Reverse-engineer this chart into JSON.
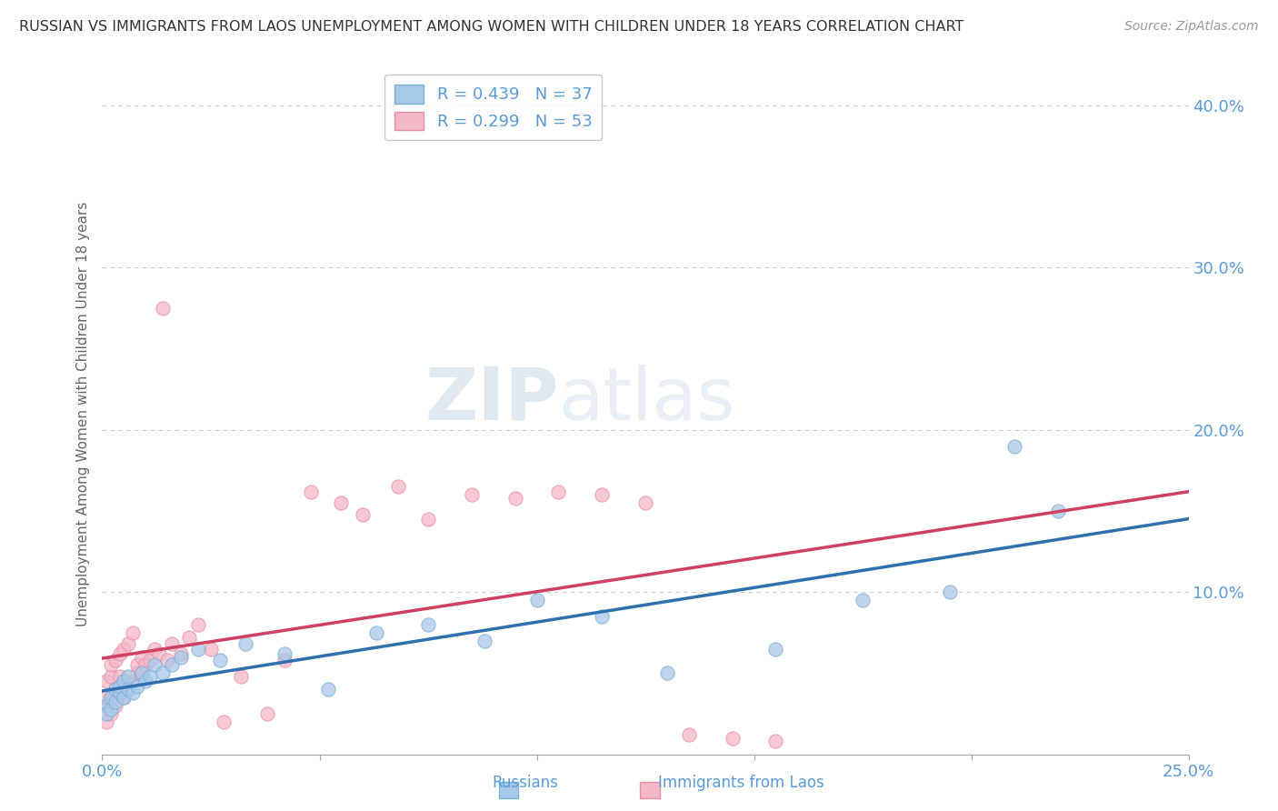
{
  "title": "RUSSIAN VS IMMIGRANTS FROM LAOS UNEMPLOYMENT AMONG WOMEN WITH CHILDREN UNDER 18 YEARS CORRELATION CHART",
  "source": "Source: ZipAtlas.com",
  "ylabel": "Unemployment Among Women with Children Under 18 years",
  "xlim": [
    0.0,
    0.25
  ],
  "ylim": [
    0.0,
    0.42
  ],
  "legend_blue_R": "R = 0.439",
  "legend_blue_N": "N = 37",
  "legend_pink_R": "R = 0.299",
  "legend_pink_N": "N = 53",
  "blue_scatter_color": "#a8c8e8",
  "blue_scatter_edge": "#7bafd4",
  "pink_scatter_color": "#f4b8c8",
  "pink_scatter_edge": "#e890a8",
  "blue_line_color": "#3070b0",
  "pink_line_color": "#d04060",
  "background_color": "#ffffff",
  "grid_color": "#cccccc",
  "title_color": "#333333",
  "source_color": "#999999",
  "tick_color": "#5b9bd5",
  "ylabel_color": "#666666",
  "russians_x": [
    0.001,
    0.001,
    0.002,
    0.002,
    0.003,
    0.003,
    0.004,
    0.004,
    0.005,
    0.005,
    0.006,
    0.006,
    0.007,
    0.008,
    0.009,
    0.01,
    0.011,
    0.012,
    0.014,
    0.016,
    0.018,
    0.022,
    0.027,
    0.033,
    0.042,
    0.052,
    0.063,
    0.075,
    0.088,
    0.1,
    0.115,
    0.13,
    0.155,
    0.175,
    0.195,
    0.21,
    0.22
  ],
  "russians_y": [
    0.03,
    0.025,
    0.028,
    0.035,
    0.032,
    0.04,
    0.038,
    0.042,
    0.035,
    0.045,
    0.04,
    0.048,
    0.038,
    0.042,
    0.05,
    0.045,
    0.048,
    0.055,
    0.05,
    0.055,
    0.06,
    0.065,
    0.058,
    0.068,
    0.062,
    0.04,
    0.075,
    0.08,
    0.07,
    0.095,
    0.085,
    0.05,
    0.065,
    0.095,
    0.1,
    0.19,
    0.15
  ],
  "laos_x": [
    0.001,
    0.001,
    0.001,
    0.001,
    0.002,
    0.002,
    0.002,
    0.002,
    0.003,
    0.003,
    0.003,
    0.004,
    0.004,
    0.004,
    0.005,
    0.005,
    0.005,
    0.006,
    0.006,
    0.007,
    0.007,
    0.008,
    0.008,
    0.009,
    0.009,
    0.01,
    0.011,
    0.012,
    0.013,
    0.014,
    0.015,
    0.016,
    0.018,
    0.02,
    0.022,
    0.025,
    0.028,
    0.032,
    0.038,
    0.042,
    0.048,
    0.055,
    0.06,
    0.068,
    0.075,
    0.085,
    0.095,
    0.105,
    0.115,
    0.125,
    0.135,
    0.145,
    0.155
  ],
  "laos_y": [
    0.02,
    0.03,
    0.035,
    0.045,
    0.025,
    0.035,
    0.048,
    0.055,
    0.03,
    0.04,
    0.058,
    0.038,
    0.048,
    0.062,
    0.035,
    0.045,
    0.065,
    0.04,
    0.068,
    0.045,
    0.075,
    0.05,
    0.055,
    0.05,
    0.06,
    0.055,
    0.058,
    0.065,
    0.062,
    0.275,
    0.058,
    0.068,
    0.062,
    0.072,
    0.08,
    0.065,
    0.02,
    0.048,
    0.025,
    0.058,
    0.162,
    0.155,
    0.148,
    0.165,
    0.145,
    0.16,
    0.158,
    0.162,
    0.16,
    0.155,
    0.012,
    0.01,
    0.008
  ]
}
